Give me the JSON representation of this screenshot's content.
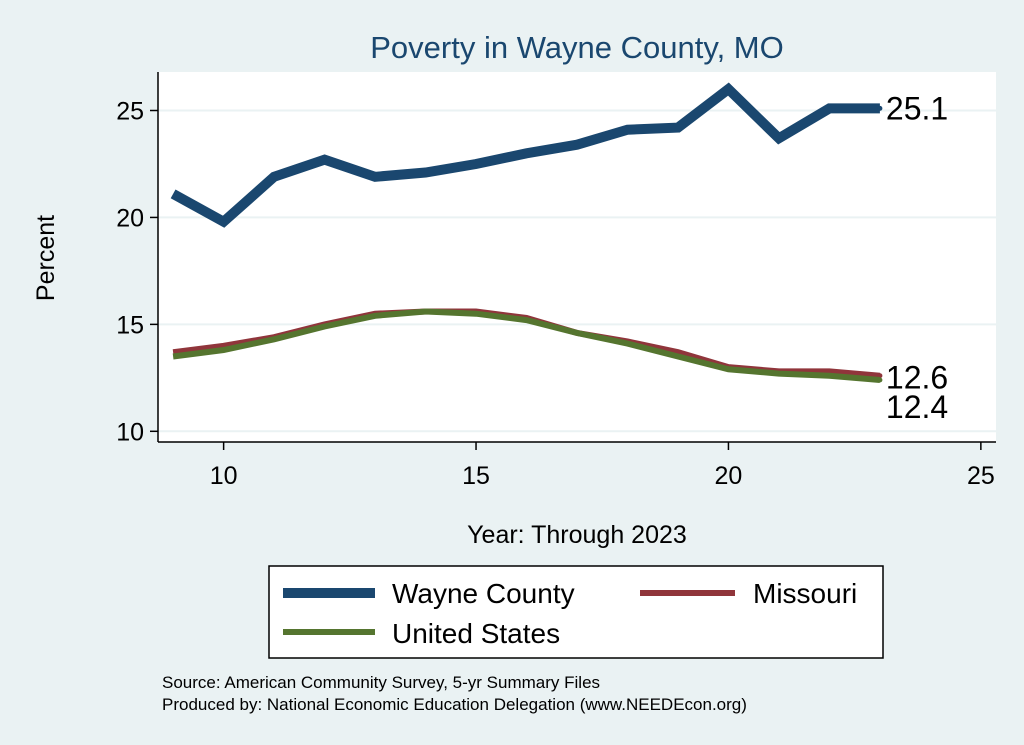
{
  "chart_data": {
    "type": "line",
    "title": "Poverty in Wayne County, MO",
    "xlabel": "Year: Through 2023",
    "ylabel": "Percent",
    "xlim": [
      8.7,
      25.3
    ],
    "ylim": [
      9.5,
      26.8
    ],
    "xticks": [
      10,
      15,
      20,
      25
    ],
    "yticks": [
      10,
      15,
      20,
      25
    ],
    "x": [
      9,
      10,
      11,
      12,
      13,
      14,
      15,
      16,
      17,
      18,
      19,
      20,
      21,
      22,
      23
    ],
    "series": [
      {
        "name": "Wayne County",
        "color": "#1A476F",
        "width": 10,
        "values": [
          21.1,
          19.8,
          21.9,
          22.7,
          21.9,
          22.1,
          22.5,
          23.0,
          23.4,
          24.1,
          24.2,
          26.0,
          23.7,
          25.1,
          25.1
        ],
        "end_label": "25.1"
      },
      {
        "name": "Missouri",
        "color": "#90353B",
        "width": 6,
        "values": [
          13.7,
          14.0,
          14.4,
          15.0,
          15.5,
          15.6,
          15.6,
          15.3,
          14.6,
          14.2,
          13.7,
          13.0,
          12.8,
          12.8,
          12.6
        ],
        "end_label": "12.6"
      },
      {
        "name": "United States",
        "color": "#55752F",
        "width": 6,
        "values": [
          13.5,
          13.8,
          14.3,
          14.9,
          15.4,
          15.6,
          15.5,
          15.2,
          14.6,
          14.1,
          13.5,
          12.9,
          12.7,
          12.6,
          12.4
        ],
        "end_label": "12.4"
      }
    ],
    "legend_position": "bottom"
  },
  "legend": {
    "items": [
      {
        "label": "Wayne County",
        "color": "#1A476F"
      },
      {
        "label": "Missouri",
        "color": "#90353B"
      },
      {
        "label": "United States",
        "color": "#55752F"
      }
    ]
  },
  "footer": {
    "source": "Source: American Community Survey, 5-yr Summary Files",
    "produced_by": "Produced by: National Economic Education Delegation (www.NEEDEcon.org)"
  }
}
